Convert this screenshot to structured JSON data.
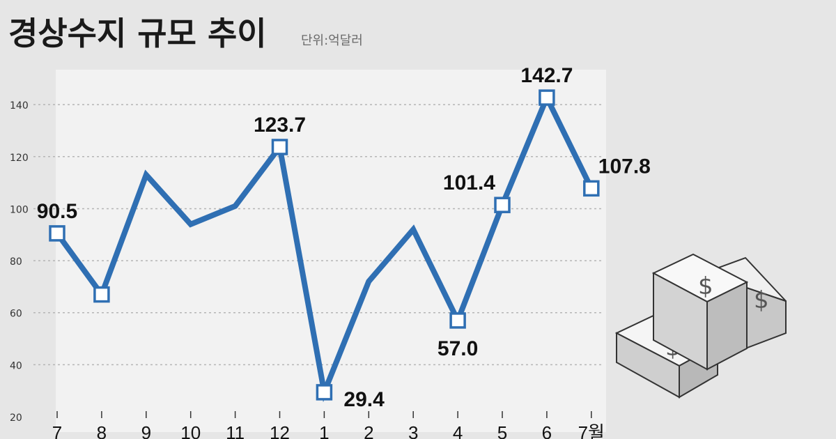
{
  "title": "경상수지 규모 추이",
  "unit": "단위:억달러",
  "colors": {
    "line": "#2f6fb3",
    "marker_fill": "#ffffff",
    "background": "#e6e6e6",
    "plot_area": "#f2f2f2",
    "grid": "#b5b5b5"
  },
  "icon": "money-stack-icon",
  "chart_data": {
    "type": "line",
    "title": "경상수지 규모 추이",
    "unit": "단위:억달러",
    "categories": [
      "7",
      "8",
      "9",
      "10",
      "11",
      "12",
      "1",
      "2",
      "3",
      "4",
      "5",
      "6",
      "7월"
    ],
    "values": [
      90.5,
      67,
      113,
      94,
      101,
      123.7,
      29.4,
      72,
      92,
      57.0,
      101.4,
      142.7,
      107.8
    ],
    "data_labels": [
      "90.5",
      "",
      "",
      "",
      "",
      "123.7",
      "29.4",
      "",
      "",
      "57.0",
      "101.4",
      "142.7",
      "107.8"
    ],
    "marked_points": [
      true,
      true,
      false,
      false,
      false,
      true,
      true,
      false,
      false,
      true,
      true,
      true,
      true
    ],
    "ylim": [
      20,
      150
    ],
    "yticks": [
      20,
      40,
      60,
      80,
      100,
      120,
      140
    ],
    "grid": true
  }
}
